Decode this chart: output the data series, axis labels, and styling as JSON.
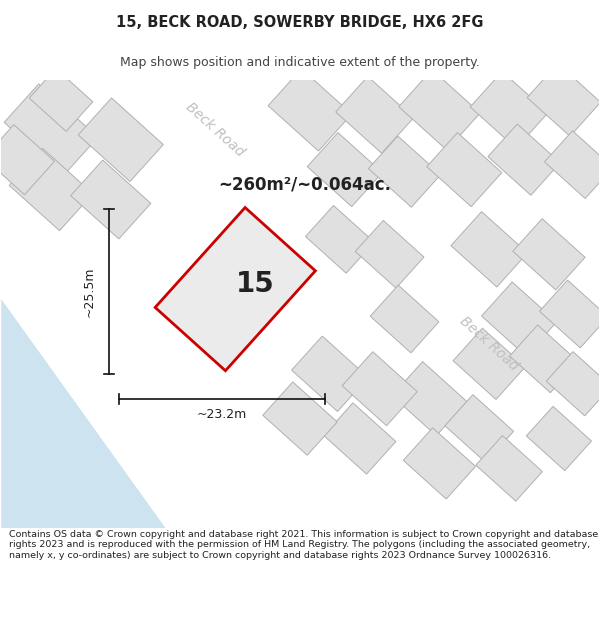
{
  "title_line1": "15, BECK ROAD, SOWERBY BRIDGE, HX6 2FG",
  "title_line2": "Map shows position and indicative extent of the property.",
  "area_label": "~260m²/~0.064ac.",
  "property_number": "15",
  "width_label": "~23.2m",
  "height_label": "~25.5m",
  "footer_text": "Contains OS data © Crown copyright and database right 2021. This information is subject to Crown copyright and database rights 2023 and is reproduced with the permission of HM Land Registry. The polygons (including the associated geometry, namely x, y co-ordinates) are subject to Crown copyright and database rights 2023 Ordnance Survey 100026316.",
  "map_bg": "#ebebeb",
  "road_fill": "#ffffff",
  "parcel_fill": "#e0e0e0",
  "parcel_stroke": "#b0b0b0",
  "parcel_lw": 0.7,
  "highlight_stroke": "#cc0000",
  "highlight_fill": "#ebebeb",
  "highlight_lw": 2.0,
  "water_color": "#cde3f0",
  "dim_line_color": "#111111",
  "road_label_color": "#c0c0c0",
  "text_color": "#222222",
  "footer_fontsize": 6.8,
  "title_fontsize": 10.5,
  "subtitle_fontsize": 9.0
}
